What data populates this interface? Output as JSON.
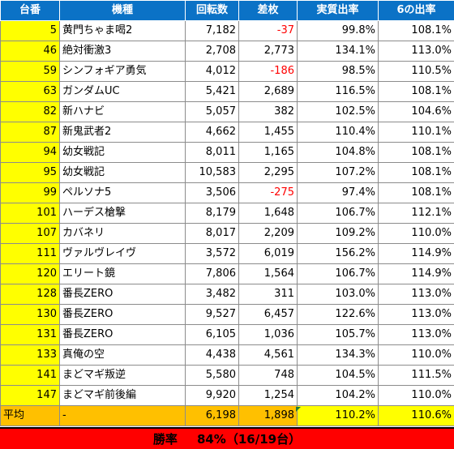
{
  "columns": [
    "台番",
    "機種",
    "回転数",
    "差枚",
    "実質出率",
    "6の出率"
  ],
  "rows": [
    {
      "ban": "5",
      "name": "黄門ちゃま喝2",
      "spins": "7,182",
      "diff": "-37",
      "diff_negative": true,
      "rate": "99.8%",
      "six": "108.1%"
    },
    {
      "ban": "46",
      "name": "絶対衝激3",
      "spins": "2,708",
      "diff": "2,773",
      "diff_negative": false,
      "rate": "134.1%",
      "six": "113.0%"
    },
    {
      "ban": "59",
      "name": "シンフォギア勇気",
      "spins": "4,012",
      "diff": "-186",
      "diff_negative": true,
      "rate": "98.5%",
      "six": "110.5%"
    },
    {
      "ban": "63",
      "name": "ガンダムUC",
      "spins": "5,421",
      "diff": "2,689",
      "diff_negative": false,
      "rate": "116.5%",
      "six": "108.1%"
    },
    {
      "ban": "82",
      "name": "新ハナビ",
      "spins": "5,057",
      "diff": "382",
      "diff_negative": false,
      "rate": "102.5%",
      "six": "104.6%"
    },
    {
      "ban": "87",
      "name": "新鬼武者2",
      "spins": "4,662",
      "diff": "1,455",
      "diff_negative": false,
      "rate": "110.4%",
      "six": "110.1%"
    },
    {
      "ban": "94",
      "name": "幼女戦記",
      "spins": "8,011",
      "diff": "1,165",
      "diff_negative": false,
      "rate": "104.8%",
      "six": "108.1%"
    },
    {
      "ban": "95",
      "name": "幼女戦記",
      "spins": "10,583",
      "diff": "2,295",
      "diff_negative": false,
      "rate": "107.2%",
      "six": "108.1%"
    },
    {
      "ban": "99",
      "name": "ペルソナ5",
      "spins": "3,506",
      "diff": "-275",
      "diff_negative": true,
      "rate": "97.4%",
      "six": "108.1%"
    },
    {
      "ban": "101",
      "name": "ハーデス槍撃",
      "spins": "8,179",
      "diff": "1,648",
      "diff_negative": false,
      "rate": "106.7%",
      "six": "112.1%"
    },
    {
      "ban": "107",
      "name": "カバネリ",
      "spins": "8,017",
      "diff": "2,209",
      "diff_negative": false,
      "rate": "109.2%",
      "six": "110.0%"
    },
    {
      "ban": "111",
      "name": "ヴァルヴレイヴ",
      "spins": "3,572",
      "diff": "6,019",
      "diff_negative": false,
      "rate": "156.2%",
      "six": "114.9%"
    },
    {
      "ban": "120",
      "name": "エリート鏡",
      "spins": "7,806",
      "diff": "1,564",
      "diff_negative": false,
      "rate": "106.7%",
      "six": "114.9%"
    },
    {
      "ban": "128",
      "name": "番長ZERO",
      "spins": "3,482",
      "diff": "311",
      "diff_negative": false,
      "rate": "103.0%",
      "six": "113.0%"
    },
    {
      "ban": "130",
      "name": "番長ZERO",
      "spins": "9,527",
      "diff": "6,457",
      "diff_negative": false,
      "rate": "122.6%",
      "six": "113.0%"
    },
    {
      "ban": "131",
      "name": "番長ZERO",
      "spins": "6,105",
      "diff": "1,036",
      "diff_negative": false,
      "rate": "105.7%",
      "six": "113.0%"
    },
    {
      "ban": "133",
      "name": "真俺の空",
      "spins": "4,438",
      "diff": "4,561",
      "diff_negative": false,
      "rate": "134.3%",
      "six": "110.0%"
    },
    {
      "ban": "141",
      "name": "まどマギ叛逆",
      "spins": "5,580",
      "diff": "748",
      "diff_negative": false,
      "rate": "104.5%",
      "six": "111.5%"
    },
    {
      "ban": "147",
      "name": "まどマギ前後編",
      "spins": "9,920",
      "diff": "1,254",
      "diff_negative": false,
      "rate": "104.2%",
      "six": "110.0%"
    }
  ],
  "average": {
    "label": "平均",
    "name": "-",
    "spins": "6,198",
    "diff": "1,898",
    "rate": "110.2%",
    "six": "110.6%"
  },
  "win": {
    "label": "勝率",
    "percent": "84%",
    "detail": "（16/19台）"
  },
  "colors": {
    "header": "#0b72c6",
    "ban_cell": "#ffff00",
    "average_row": "#ffc000",
    "negative": "#ff0000",
    "win_bar": "#ff0000"
  }
}
